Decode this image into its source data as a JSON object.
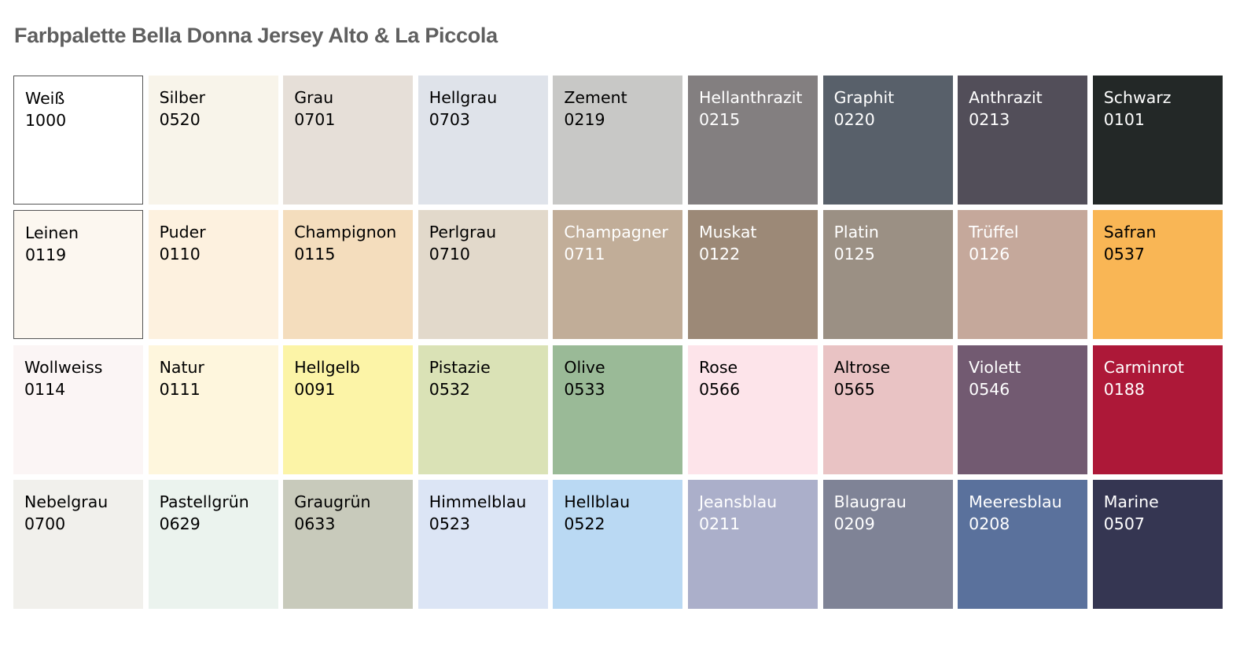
{
  "title": "Farbpalette Bella Donna Jersey Alto & La Piccola",
  "swatches": [
    {
      "name": "Weiß",
      "code": "1000",
      "color": "#ffffff",
      "text": "#000000",
      "border": true
    },
    {
      "name": "Silber",
      "code": "0520",
      "color": "#f8f4ea",
      "text": "#000000"
    },
    {
      "name": "Grau",
      "code": "0701",
      "color": "#e6dfd8",
      "text": "#000000"
    },
    {
      "name": "Hellgrau",
      "code": "0703",
      "color": "#dfe3ea",
      "text": "#000000"
    },
    {
      "name": "Zement",
      "code": "0219",
      "color": "#c8c8c6",
      "text": "#000000"
    },
    {
      "name": "Hellanthrazit",
      "code": "0215",
      "color": "#837f80",
      "text": "#ffffff"
    },
    {
      "name": "Graphit",
      "code": "0220",
      "color": "#58606a",
      "text": "#ffffff"
    },
    {
      "name": "Anthrazit",
      "code": "0213",
      "color": "#524e59",
      "text": "#ffffff"
    },
    {
      "name": "Schwarz",
      "code": "0101",
      "color": "#232827",
      "text": "#ffffff"
    },
    {
      "name": "Leinen",
      "code": "0119",
      "color": "#fcf7f0",
      "text": "#000000",
      "border": true
    },
    {
      "name": "Puder",
      "code": "0110",
      "color": "#fdf1df",
      "text": "#000000"
    },
    {
      "name": "Champignon",
      "code": "0115",
      "color": "#f4ddbd",
      "text": "#000000"
    },
    {
      "name": "Perlgrau",
      "code": "0710",
      "color": "#e2d9cb",
      "text": "#000000"
    },
    {
      "name": "Champagner",
      "code": "0711",
      "color": "#c1ad98",
      "text": "#ffffff"
    },
    {
      "name": "Muskat",
      "code": "0122",
      "color": "#9c8977",
      "text": "#ffffff"
    },
    {
      "name": "Platin",
      "code": "0125",
      "color": "#9b9084",
      "text": "#ffffff"
    },
    {
      "name": "Trüffel",
      "code": "0126",
      "color": "#c5a89b",
      "text": "#ffffff"
    },
    {
      "name": "Safran",
      "code": "0537",
      "color": "#f9b655",
      "text": "#000000"
    },
    {
      "name": "Wollweiss",
      "code": "0114",
      "color": "#fbf5f5",
      "text": "#000000"
    },
    {
      "name": "Natur",
      "code": "0111",
      "color": "#fef6dd",
      "text": "#000000"
    },
    {
      "name": "Hellgelb",
      "code": "0091",
      "color": "#fcf4a7",
      "text": "#000000"
    },
    {
      "name": "Pistazie",
      "code": "0532",
      "color": "#dae2b6",
      "text": "#000000"
    },
    {
      "name": "Olive",
      "code": "0533",
      "color": "#9aba97",
      "text": "#000000"
    },
    {
      "name": "Rose",
      "code": "0566",
      "color": "#fde4ea",
      "text": "#000000"
    },
    {
      "name": "Altrose",
      "code": "0565",
      "color": "#e9c3c4",
      "text": "#000000"
    },
    {
      "name": "Violett",
      "code": "0546",
      "color": "#725a71",
      "text": "#ffffff"
    },
    {
      "name": "Carminrot",
      "code": "0188",
      "color": "#ad1838",
      "text": "#ffffff"
    },
    {
      "name": "Nebelgrau",
      "code": "0700",
      "color": "#f1f0ec",
      "text": "#000000"
    },
    {
      "name": "Pastellgrün",
      "code": "0629",
      "color": "#ebf3ee",
      "text": "#000000"
    },
    {
      "name": "Graugrün",
      "code": "0633",
      "color": "#c8cabb",
      "text": "#000000"
    },
    {
      "name": "Himmelblau",
      "code": "0523",
      "color": "#dce5f5",
      "text": "#000000"
    },
    {
      "name": "Hellblau",
      "code": "0522",
      "color": "#bad9f3",
      "text": "#000000"
    },
    {
      "name": "Jeansblau",
      "code": "0211",
      "color": "#abafca",
      "text": "#ffffff"
    },
    {
      "name": "Blaugrau",
      "code": "0209",
      "color": "#7f8396",
      "text": "#ffffff"
    },
    {
      "name": "Meeresblau",
      "code": "0208",
      "color": "#5a719c",
      "text": "#ffffff"
    },
    {
      "name": "Marine",
      "code": "0507",
      "color": "#353652",
      "text": "#ffffff"
    }
  ]
}
